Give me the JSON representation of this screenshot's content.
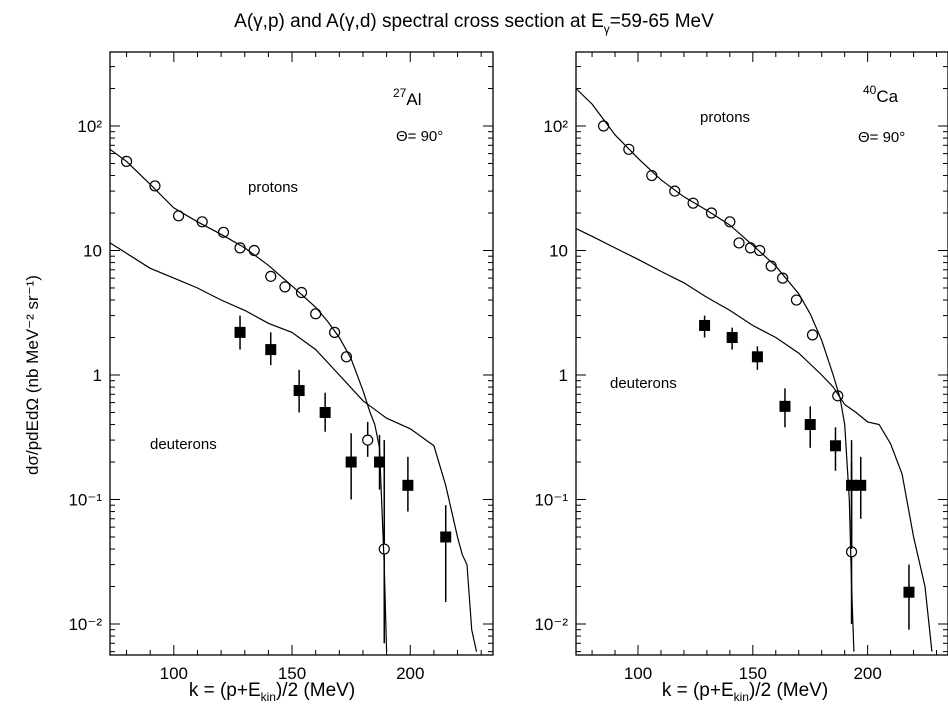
{
  "title_prefix": "A(γ,p) and A(γ,d) spectral cross section at E",
  "title_sub": "γ",
  "title_suffix": "=59-65 MeV",
  "ylabel": "dσ/pdEdΩ (nb MeV⁻² sr⁻¹)",
  "xlabel_main": "k = (p+E",
  "xlabel_sub": "kin",
  "xlabel_end": ")/2 (MeV)",
  "chart_data": [
    {
      "type": "scatter",
      "panel": "left",
      "nucleus_mass": "27",
      "nucleus": "Al",
      "angle_label": "Θ= 90°",
      "xlim": [
        73,
        235
      ],
      "ylim": [
        0.006,
        500
      ],
      "yscale": "log",
      "x_ticks": [
        "100",
        "150",
        "200"
      ],
      "y_ticks": [
        "10⁻²",
        "10⁻¹",
        "1",
        "10",
        "10²"
      ],
      "labels": {
        "protons": "protons",
        "deuterons": "deuterons"
      },
      "series": [
        {
          "name": "protons",
          "marker": "open-circle",
          "x": [
            80,
            92,
            102,
            112,
            121,
            128,
            134,
            141,
            147,
            154,
            160,
            168,
            173,
            182,
            189
          ],
          "y": [
            52,
            33,
            19,
            17,
            14,
            10.5,
            10,
            6.2,
            5.1,
            4.6,
            3.1,
            2.2,
            1.4,
            0.3,
            0.04
          ],
          "err_low": [
            null,
            null,
            null,
            null,
            null,
            null,
            null,
            null,
            null,
            null,
            null,
            null,
            null,
            0.22,
            0.007
          ],
          "err_high": [
            null,
            null,
            null,
            null,
            null,
            null,
            null,
            null,
            null,
            null,
            null,
            null,
            null,
            0.42,
            0.3
          ]
        },
        {
          "name": "deuterons",
          "marker": "filled-square",
          "x": [
            128,
            141,
            153,
            164,
            175,
            187,
            199,
            215
          ],
          "y": [
            2.2,
            1.6,
            0.75,
            0.5,
            0.2,
            0.2,
            0.13,
            0.05
          ],
          "err_low": [
            1.6,
            1.2,
            0.5,
            0.35,
            0.1,
            0.12,
            0.08,
            0.015
          ],
          "err_high": [
            3.0,
            2.2,
            1.1,
            0.72,
            0.34,
            0.33,
            0.22,
            0.09
          ]
        },
        {
          "name": "protons-curve",
          "type": "line",
          "x": [
            73,
            80,
            90,
            100,
            110,
            120,
            130,
            140,
            150,
            160,
            165,
            170,
            175,
            180,
            183,
            185,
            187,
            189,
            190
          ],
          "y": [
            65,
            52,
            34,
            22,
            17,
            13.5,
            10.5,
            7.6,
            5.2,
            3.5,
            2.7,
            2.0,
            1.35,
            0.75,
            0.5,
            0.4,
            0.26,
            0.03,
            0.006
          ]
        },
        {
          "name": "deuterons-curve",
          "type": "line",
          "x": [
            73,
            80,
            90,
            100,
            110,
            120,
            130,
            140,
            150,
            160,
            170,
            180,
            190,
            200,
            210,
            215,
            220,
            222,
            224,
            226,
            228
          ],
          "y": [
            11.5,
            9.5,
            7.2,
            6.0,
            5.0,
            4.0,
            3.3,
            2.6,
            2.2,
            1.6,
            1.0,
            0.62,
            0.45,
            0.37,
            0.27,
            0.13,
            0.05,
            0.036,
            0.03,
            0.009,
            0.006
          ]
        }
      ]
    },
    {
      "type": "scatter",
      "panel": "right",
      "nucleus_mass": "40",
      "nucleus": "Ca",
      "angle_label": "Θ= 90°",
      "xlim": [
        73,
        235
      ],
      "ylim": [
        0.006,
        500
      ],
      "yscale": "log",
      "x_ticks": [
        "100",
        "150",
        "200"
      ],
      "y_ticks": [
        "10⁻²",
        "10⁻¹",
        "1",
        "10",
        "10²"
      ],
      "labels": {
        "protons": "protons",
        "deuterons": "deuterons"
      },
      "series": [
        {
          "name": "protons",
          "marker": "open-circle",
          "x": [
            85,
            96,
            106,
            116,
            124,
            132,
            140,
            144,
            149,
            153,
            158,
            163,
            169,
            176,
            187,
            193
          ],
          "y": [
            100,
            65,
            40,
            30,
            24,
            20,
            17,
            11.5,
            10.5,
            10,
            7.5,
            6,
            4,
            2.1,
            0.68,
            0.038
          ],
          "err_low": [
            null,
            null,
            null,
            null,
            null,
            null,
            null,
            null,
            null,
            null,
            null,
            null,
            null,
            null,
            null,
            0.01
          ],
          "err_high": [
            null,
            null,
            null,
            null,
            null,
            null,
            null,
            null,
            null,
            null,
            null,
            null,
            null,
            null,
            null,
            0.3
          ]
        },
        {
          "name": "deuterons",
          "marker": "filled-square",
          "x": [
            129,
            141,
            152,
            164,
            175,
            186,
            193,
            197,
            218
          ],
          "y": [
            2.5,
            2.0,
            1.4,
            0.56,
            0.4,
            0.27,
            0.13,
            0.13,
            0.018
          ],
          "err_low": [
            2.0,
            1.6,
            1.1,
            0.38,
            0.26,
            0.17,
            0.04,
            0.07,
            0.009
          ],
          "err_high": [
            3.0,
            2.4,
            1.7,
            0.78,
            0.56,
            0.38,
            0.2,
            0.22,
            0.03
          ]
        },
        {
          "name": "protons-curve",
          "type": "line",
          "x": [
            73,
            80,
            90,
            100,
            110,
            120,
            130,
            140,
            150,
            160,
            170,
            175,
            180,
            185,
            188,
            190,
            192,
            193,
            194
          ],
          "y": [
            200,
            150,
            85,
            55,
            37,
            27,
            21,
            16,
            11,
            7.5,
            4.5,
            3.1,
            1.9,
            1.0,
            0.65,
            0.4,
            0.1,
            0.02,
            0.006
          ]
        },
        {
          "name": "deuterons-curve",
          "type": "line",
          "x": [
            73,
            80,
            90,
            100,
            110,
            120,
            130,
            140,
            150,
            160,
            170,
            180,
            185,
            190,
            195,
            200,
            205,
            210,
            215,
            220,
            225,
            228
          ],
          "y": [
            15,
            13,
            10.5,
            8.5,
            6.8,
            5.5,
            4.2,
            3.3,
            2.5,
            2.0,
            1.5,
            1.0,
            0.8,
            0.58,
            0.5,
            0.42,
            0.4,
            0.28,
            0.16,
            0.05,
            0.02,
            0.006
          ]
        }
      ]
    }
  ]
}
